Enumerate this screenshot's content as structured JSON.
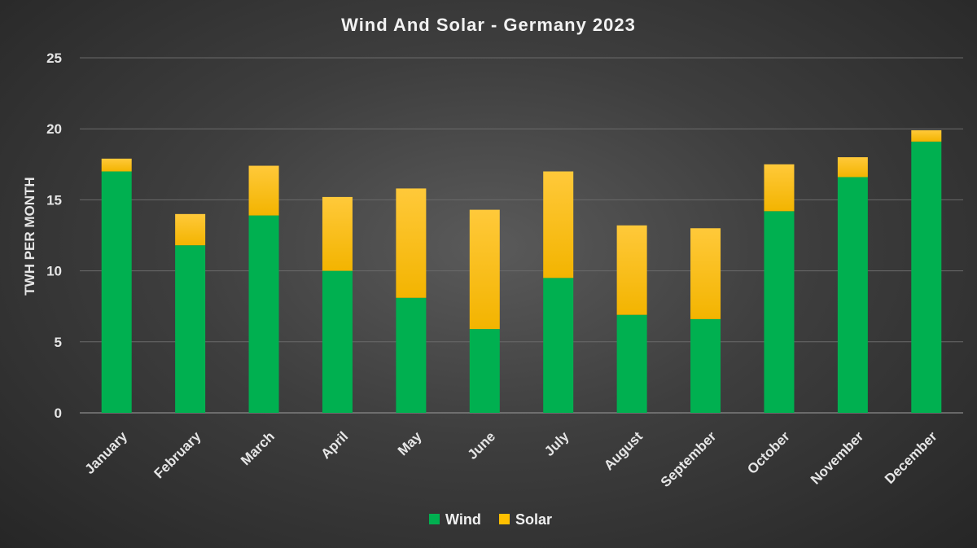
{
  "chart_data": {
    "type": "bar",
    "stacked": true,
    "title": "Wind And Solar - Germany 2023",
    "xlabel": "",
    "ylabel": "TWH PER MONTH",
    "ylim": [
      0,
      25
    ],
    "yticks": [
      0,
      5,
      10,
      15,
      20,
      25
    ],
    "grid": true,
    "legend_position": "bottom",
    "categories": [
      "January",
      "February",
      "March",
      "April",
      "May",
      "June",
      "July",
      "August",
      "September",
      "October",
      "November",
      "December"
    ],
    "series": [
      {
        "name": "Wind",
        "color": "#00b050",
        "values": [
          17.0,
          11.8,
          13.9,
          10.0,
          8.1,
          5.9,
          9.5,
          6.9,
          6.6,
          14.2,
          16.6,
          19.1
        ]
      },
      {
        "name": "Solar",
        "color": "#ffc000",
        "values": [
          0.9,
          2.2,
          3.5,
          5.2,
          7.7,
          8.4,
          7.5,
          6.3,
          6.4,
          3.3,
          1.4,
          0.8
        ]
      }
    ]
  }
}
